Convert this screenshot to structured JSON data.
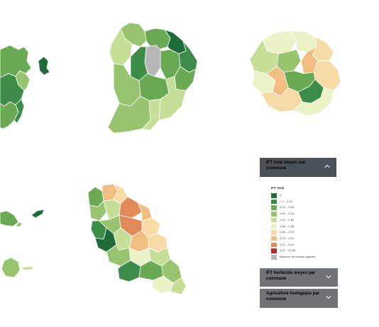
{
  "colors": {
    "panel_dark": "#4a5257",
    "panel_grey": "#6e7377",
    "outline": "#ffffff",
    "absence": "#b7b7b7"
  },
  "panel": {
    "active_title": "IFT total moyen par commune",
    "active_chevron": "chevron-up-icon",
    "items": [
      {
        "title": "IFT herbicide moyen par commune",
        "chevron": "chevron-down-icon"
      },
      {
        "title": "Agriculture biologique par commune",
        "chevron": "chevron-down-icon"
      }
    ]
  },
  "legend": {
    "title": "IFT Total",
    "classes": [
      {
        "label": "0",
        "color": "#1f6b3a"
      },
      {
        "label": "> 0 – 0,14",
        "color": "#3d8c47"
      },
      {
        "label": "0,14 – 0,59",
        "color": "#6aaa55"
      },
      {
        "label": "0,59 – 1,24",
        "color": "#98c46f"
      },
      {
        "label": "1,24 – 1,88",
        "color": "#c6df97"
      },
      {
        "label": "1,88 – 2,46",
        "color": "#eaf2c6"
      },
      {
        "label": "2,46 – 3,19",
        "color": "#f6dba6"
      },
      {
        "label": "3,19 – 4,21",
        "color": "#f1bd80"
      },
      {
        "label": "4,21 – 5,24",
        "color": "#e08a5a"
      },
      {
        "label": "5,24 – 21,56",
        "color": "#b8283a"
      },
      {
        "label": "Absence de surface agricole",
        "color": "#b7b7b7"
      }
    ]
  }
}
